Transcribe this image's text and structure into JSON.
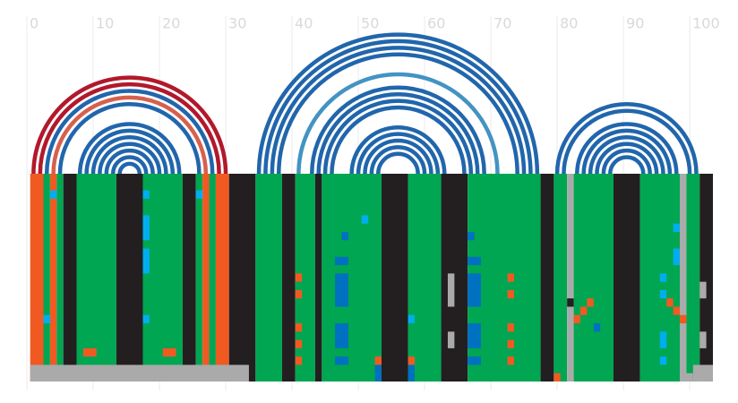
{
  "chart_data": {
    "type": "arc",
    "xlim": [
      0,
      103.5
    ],
    "xticks": [
      0,
      10,
      20,
      30,
      40,
      50,
      60,
      70,
      80,
      90,
      100
    ],
    "grid": true,
    "rows": 25,
    "arcs": [
      {
        "start": 1,
        "end": 30,
        "color": "#b2182b"
      },
      {
        "start": 2,
        "end": 29,
        "color": "#b2182b"
      },
      {
        "start": 3,
        "end": 28,
        "color": "#2166ac"
      },
      {
        "start": 4,
        "end": 27,
        "color": "#d6604d"
      },
      {
        "start": 5,
        "end": 26,
        "color": "#2166ac"
      },
      {
        "start": 8,
        "end": 23,
        "color": "#2166ac"
      },
      {
        "start": 9,
        "end": 22,
        "color": "#2166ac"
      },
      {
        "start": 10,
        "end": 21,
        "color": "#2166ac"
      },
      {
        "start": 11,
        "end": 20,
        "color": "#2166ac"
      },
      {
        "start": 12,
        "end": 19,
        "color": "#2166ac"
      },
      {
        "start": 13,
        "end": 18,
        "color": "#2166ac"
      },
      {
        "start": 14,
        "end": 17,
        "color": "#2166ac"
      },
      {
        "start": 35,
        "end": 77,
        "color": "#2166ac"
      },
      {
        "start": 36,
        "end": 76,
        "color": "#2166ac"
      },
      {
        "start": 37,
        "end": 75,
        "color": "#2166ac"
      },
      {
        "start": 38,
        "end": 74,
        "color": "#2166ac"
      },
      {
        "start": 41,
        "end": 71,
        "color": "#4393c3"
      },
      {
        "start": 43,
        "end": 69,
        "color": "#2166ac"
      },
      {
        "start": 44,
        "end": 68,
        "color": "#2166ac"
      },
      {
        "start": 45,
        "end": 67,
        "color": "#2166ac"
      },
      {
        "start": 46,
        "end": 66,
        "color": "#2166ac"
      },
      {
        "start": 49,
        "end": 63,
        "color": "#2166ac"
      },
      {
        "start": 50,
        "end": 62,
        "color": "#2166ac"
      },
      {
        "start": 51,
        "end": 61,
        "color": "#2166ac"
      },
      {
        "start": 52,
        "end": 60,
        "color": "#2166ac"
      },
      {
        "start": 53,
        "end": 59,
        "color": "#2166ac"
      },
      {
        "start": 80,
        "end": 101,
        "color": "#2166ac"
      },
      {
        "start": 81,
        "end": 100,
        "color": "#2166ac"
      },
      {
        "start": 83,
        "end": 98,
        "color": "#2166ac"
      },
      {
        "start": 84,
        "end": 97,
        "color": "#2166ac"
      },
      {
        "start": 85,
        "end": 96,
        "color": "#2166ac"
      },
      {
        "start": 86,
        "end": 95,
        "color": "#2166ac"
      },
      {
        "start": 87,
        "end": 94,
        "color": "#2166ac"
      },
      {
        "start": 88,
        "end": 93,
        "color": "#2166ac"
      }
    ],
    "columns": [
      {
        "start": 0.5,
        "end": 2.5,
        "color": "#f05a22"
      },
      {
        "start": 2.5,
        "end": 3.5,
        "color": "#00a651"
      },
      {
        "start": 3.5,
        "end": 4.5,
        "color": "#f05a22"
      },
      {
        "start": 4.5,
        "end": 5.5,
        "color": "#00a651"
      },
      {
        "start": 5.5,
        "end": 7.5,
        "color": "#231f20"
      },
      {
        "start": 7.5,
        "end": 13.5,
        "color": "#00a651"
      },
      {
        "start": 13.5,
        "end": 17.5,
        "color": "#231f20"
      },
      {
        "start": 17.5,
        "end": 23.5,
        "color": "#00a651"
      },
      {
        "start": 23.5,
        "end": 25.5,
        "color": "#231f20"
      },
      {
        "start": 25.5,
        "end": 26.5,
        "color": "#00a651"
      },
      {
        "start": 26.5,
        "end": 27.5,
        "color": "#f05a22"
      },
      {
        "start": 27.5,
        "end": 28.5,
        "color": "#00a651"
      },
      {
        "start": 28.5,
        "end": 30.5,
        "color": "#f05a22"
      },
      {
        "start": 30.5,
        "end": 34.5,
        "color": "#231f20"
      },
      {
        "start": 34.5,
        "end": 38.5,
        "color": "#00a651"
      },
      {
        "start": 38.5,
        "end": 40.5,
        "color": "#231f20"
      },
      {
        "start": 40.5,
        "end": 43.5,
        "color": "#00a651"
      },
      {
        "start": 43.5,
        "end": 44.5,
        "color": "#231f20"
      },
      {
        "start": 44.5,
        "end": 53.5,
        "color": "#00a651"
      },
      {
        "start": 53.5,
        "end": 57.5,
        "color": "#231f20"
      },
      {
        "start": 57.5,
        "end": 62.5,
        "color": "#00a651"
      },
      {
        "start": 62.5,
        "end": 66.5,
        "color": "#231f20"
      },
      {
        "start": 66.5,
        "end": 77.5,
        "color": "#00a651"
      },
      {
        "start": 77.5,
        "end": 79.5,
        "color": "#231f20"
      },
      {
        "start": 79.5,
        "end": 81.5,
        "color": "#00a651"
      },
      {
        "start": 81.5,
        "end": 82.5,
        "color": "#aaaaaa"
      },
      {
        "start": 82.5,
        "end": 88.5,
        "color": "#00a651"
      },
      {
        "start": 88.5,
        "end": 92.5,
        "color": "#231f20"
      },
      {
        "start": 92.5,
        "end": 98.5,
        "color": "#00a651"
      },
      {
        "start": 98.5,
        "end": 99.5,
        "color": "#aaaaaa"
      },
      {
        "start": 99.5,
        "end": 101.5,
        "color": "#00a651"
      },
      {
        "start": 101.5,
        "end": 103.5,
        "color": "#231f20"
      }
    ],
    "cells": [
      {
        "start": 3.5,
        "end": 4.5,
        "rows": [
          2,
          3
        ],
        "color": "#00aeef"
      },
      {
        "start": 17.5,
        "end": 18.5,
        "rows": [
          2,
          3
        ],
        "color": "#00aeef"
      },
      {
        "start": 17.5,
        "end": 18.5,
        "rows": [
          5,
          8
        ],
        "color": "#00aeef"
      },
      {
        "start": 17.5,
        "end": 18.5,
        "rows": [
          9,
          12
        ],
        "color": "#00aeef"
      },
      {
        "start": 25.5,
        "end": 26.5,
        "rows": [
          2,
          3
        ],
        "color": "#00aeef"
      },
      {
        "start": 8.5,
        "end": 10.5,
        "rows": [
          21,
          22
        ],
        "color": "#f05a22"
      },
      {
        "start": 20.5,
        "end": 22.5,
        "rows": [
          21,
          22
        ],
        "color": "#f05a22"
      },
      {
        "start": 2.5,
        "end": 3.5,
        "rows": [
          17,
          18
        ],
        "color": "#00aeef"
      },
      {
        "start": 17.5,
        "end": 18.5,
        "rows": [
          17,
          18
        ],
        "color": "#00aeef"
      },
      {
        "start": 46.5,
        "end": 48.5,
        "rows": [
          10,
          11
        ],
        "color": "#0070c0"
      },
      {
        "start": 46.5,
        "end": 48.5,
        "rows": [
          12,
          16
        ],
        "color": "#0070c0"
      },
      {
        "start": 46.5,
        "end": 48.5,
        "rows": [
          18,
          21
        ],
        "color": "#0070c0"
      },
      {
        "start": 46.5,
        "end": 48.5,
        "rows": [
          22,
          23
        ],
        "color": "#0070c0"
      },
      {
        "start": 66.5,
        "end": 68.5,
        "rows": [
          10,
          11
        ],
        "color": "#0070c0"
      },
      {
        "start": 66.5,
        "end": 68.5,
        "rows": [
          12,
          16
        ],
        "color": "#0070c0"
      },
      {
        "start": 66.5,
        "end": 68.5,
        "rows": [
          18,
          21
        ],
        "color": "#0070c0"
      },
      {
        "start": 66.5,
        "end": 68.5,
        "rows": [
          22,
          23
        ],
        "color": "#0070c0"
      },
      {
        "start": 63.5,
        "end": 64.5,
        "rows": [
          12,
          16
        ],
        "color": "#aaaaaa"
      },
      {
        "start": 63.5,
        "end": 64.5,
        "rows": [
          19,
          21
        ],
        "color": "#aaaaaa"
      },
      {
        "start": 40.5,
        "end": 41.5,
        "rows": [
          12,
          13
        ],
        "color": "#f05a22"
      },
      {
        "start": 40.5,
        "end": 41.5,
        "rows": [
          14,
          15
        ],
        "color": "#f05a22"
      },
      {
        "start": 40.5,
        "end": 41.5,
        "rows": [
          18,
          19
        ],
        "color": "#f05a22"
      },
      {
        "start": 40.5,
        "end": 41.5,
        "rows": [
          20,
          21
        ],
        "color": "#f05a22"
      },
      {
        "start": 40.5,
        "end": 41.5,
        "rows": [
          22,
          23
        ],
        "color": "#f05a22"
      },
      {
        "start": 72.5,
        "end": 73.5,
        "rows": [
          12,
          13
        ],
        "color": "#f05a22"
      },
      {
        "start": 72.5,
        "end": 73.5,
        "rows": [
          14,
          15
        ],
        "color": "#f05a22"
      },
      {
        "start": 72.5,
        "end": 73.5,
        "rows": [
          18,
          19
        ],
        "color": "#f05a22"
      },
      {
        "start": 72.5,
        "end": 73.5,
        "rows": [
          20,
          21
        ],
        "color": "#f05a22"
      },
      {
        "start": 72.5,
        "end": 73.5,
        "rows": [
          22,
          23
        ],
        "color": "#f05a22"
      },
      {
        "start": 52.5,
        "end": 53.5,
        "rows": [
          22,
          23
        ],
        "color": "#f05a22"
      },
      {
        "start": 52.5,
        "end": 53.5,
        "rows": [
          23,
          25
        ],
        "color": "#0070c0"
      },
      {
        "start": 57.5,
        "end": 58.5,
        "rows": [
          22,
          23
        ],
        "color": "#f05a22"
      },
      {
        "start": 57.5,
        "end": 58.5,
        "rows": [
          23,
          25
        ],
        "color": "#0070c0"
      },
      {
        "start": 57.5,
        "end": 58.5,
        "rows": [
          17,
          18
        ],
        "color": "#00aeef"
      },
      {
        "start": 50.5,
        "end": 51.5,
        "rows": [
          5,
          6
        ],
        "color": "#00aeef"
      },
      {
        "start": 47.5,
        "end": 48.5,
        "rows": [
          7,
          8
        ],
        "color": "#0070c0"
      },
      {
        "start": 66.5,
        "end": 67.5,
        "rows": [
          7,
          8
        ],
        "color": "#0070c0"
      },
      {
        "start": 101.5,
        "end": 102.5,
        "rows": [
          13,
          15
        ],
        "color": "#aaaaaa"
      },
      {
        "start": 101.5,
        "end": 102.5,
        "rows": [
          19,
          21
        ],
        "color": "#aaaaaa"
      },
      {
        "start": 97.5,
        "end": 98.5,
        "rows": [
          6,
          7
        ],
        "color": "#00aeef"
      },
      {
        "start": 97.5,
        "end": 98.5,
        "rows": [
          9,
          11
        ],
        "color": "#00aeef"
      },
      {
        "start": 95.5,
        "end": 96.5,
        "rows": [
          12,
          13
        ],
        "color": "#00aeef"
      },
      {
        "start": 95.5,
        "end": 96.5,
        "rows": [
          14,
          15
        ],
        "color": "#00aeef"
      },
      {
        "start": 95.5,
        "end": 96.5,
        "rows": [
          19,
          21
        ],
        "color": "#00aeef"
      },
      {
        "start": 95.5,
        "end": 96.5,
        "rows": [
          22,
          23
        ],
        "color": "#00aeef"
      },
      {
        "start": 81.5,
        "end": 82.5,
        "rows": [
          15,
          16
        ],
        "color": "#231f20"
      },
      {
        "start": 82.5,
        "end": 83.5,
        "rows": [
          17,
          18
        ],
        "color": "#f05a22"
      },
      {
        "start": 83.5,
        "end": 84.5,
        "rows": [
          16,
          17
        ],
        "color": "#f05a22"
      },
      {
        "start": 84.5,
        "end": 85.5,
        "rows": [
          15,
          16
        ],
        "color": "#f05a22"
      },
      {
        "start": 96.5,
        "end": 97.5,
        "rows": [
          15,
          16
        ],
        "color": "#f05a22"
      },
      {
        "start": 97.5,
        "end": 98.5,
        "rows": [
          16,
          17
        ],
        "color": "#f05a22"
      },
      {
        "start": 98.5,
        "end": 99.5,
        "rows": [
          17,
          18
        ],
        "color": "#f05a22"
      },
      {
        "start": 85.5,
        "end": 86.5,
        "rows": [
          18,
          19
        ],
        "color": "#0070c0"
      },
      {
        "start": 0.5,
        "end": 33.5,
        "rows": [
          23,
          25
        ],
        "color": "#aaaaaa"
      },
      {
        "start": 98.5,
        "end": 100.5,
        "rows": [
          24,
          25
        ],
        "color": "#aaaaaa"
      },
      {
        "start": 100.5,
        "end": 103.5,
        "rows": [
          23,
          25
        ],
        "color": "#aaaaaa"
      },
      {
        "start": 79.5,
        "end": 80.5,
        "rows": [
          24,
          25
        ],
        "color": "#f05a22"
      }
    ]
  }
}
